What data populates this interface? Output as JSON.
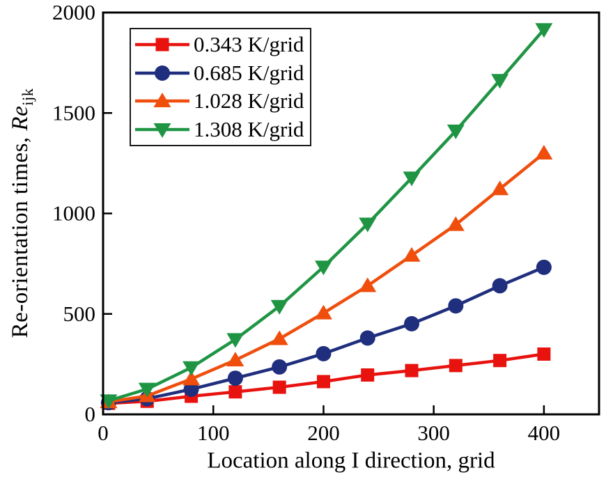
{
  "chart_data": {
    "type": "line",
    "title": "",
    "xlabel": "Location along I direction, grid",
    "ylabel": "Re-orientation times, Re_ijk",
    "ylabel_parts": {
      "prefix": "Re-orientation times, ",
      "italic": "Re",
      "subscript": "ijk"
    },
    "xlim": [
      0,
      450
    ],
    "ylim": [
      0,
      2000
    ],
    "xticks": [
      0,
      100,
      200,
      300,
      400
    ],
    "yticks": [
      0,
      500,
      1000,
      1500,
      2000
    ],
    "grid": false,
    "legend_position": "upper-left-inside",
    "axis_color": "#000000",
    "background_color": "#ffffff",
    "x": [
      5,
      40,
      80,
      120,
      160,
      200,
      240,
      280,
      320,
      360,
      400
    ],
    "series": [
      {
        "name": "0.343 K/grid",
        "color": "#e8120e",
        "marker": "square",
        "values": [
          55,
          65,
          90,
          112,
          135,
          163,
          196,
          218,
          243,
          268,
          300
        ]
      },
      {
        "name": "0.685 K/grid",
        "color": "#1f2e7d",
        "marker": "circle",
        "values": [
          58,
          78,
          125,
          180,
          236,
          302,
          380,
          451,
          540,
          640,
          732
        ]
      },
      {
        "name": "1.028 K/grid",
        "color": "#ef4e0d",
        "marker": "triangle-up",
        "values": [
          62,
          92,
          176,
          270,
          376,
          504,
          640,
          791,
          944,
          1122,
          1300
        ]
      },
      {
        "name": "1.308 K/grid",
        "color": "#1f9544",
        "marker": "triangle-down",
        "values": [
          68,
          126,
          233,
          373,
          538,
          734,
          948,
          1177,
          1411,
          1663,
          1916
        ]
      }
    ]
  }
}
